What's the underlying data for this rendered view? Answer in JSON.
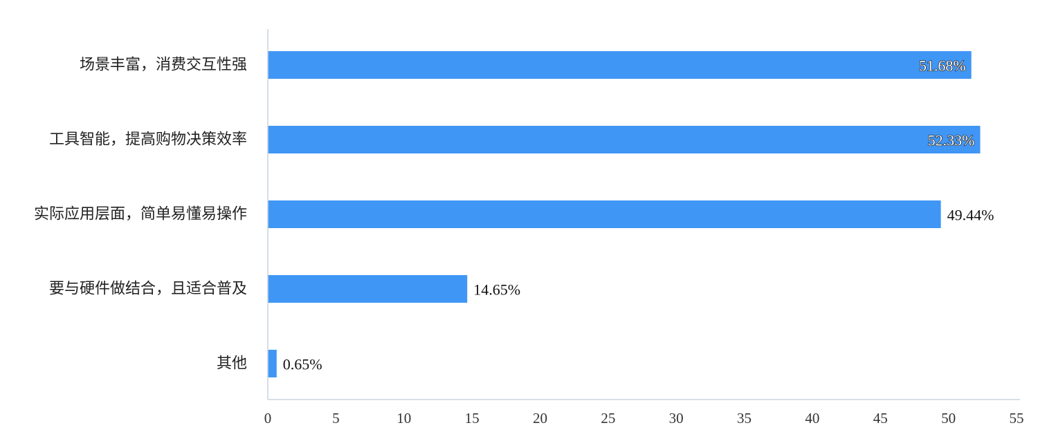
{
  "chart_data": {
    "type": "bar",
    "orientation": "horizontal",
    "categories": [
      "场景丰富，消费交互性强",
      "工具智能，提高购物决策效率",
      "实际应用层面，简单易懂易操作",
      "要与硬件做结合，且适合普及",
      "其他"
    ],
    "values": [
      51.68,
      52.33,
      49.44,
      14.65,
      0.65
    ],
    "value_labels": [
      "51.68%",
      "52.33%",
      "49.44%",
      "14.65%",
      "0.65%"
    ],
    "xlim": [
      0,
      55
    ],
    "x_ticks": [
      0,
      5,
      10,
      15,
      20,
      25,
      30,
      35,
      40,
      45,
      50,
      55
    ],
    "title": "",
    "xlabel": "",
    "ylabel": "",
    "grid": false,
    "legend": "none",
    "bar_color": "#4096f5",
    "axis_color": "#c8d3e0"
  }
}
